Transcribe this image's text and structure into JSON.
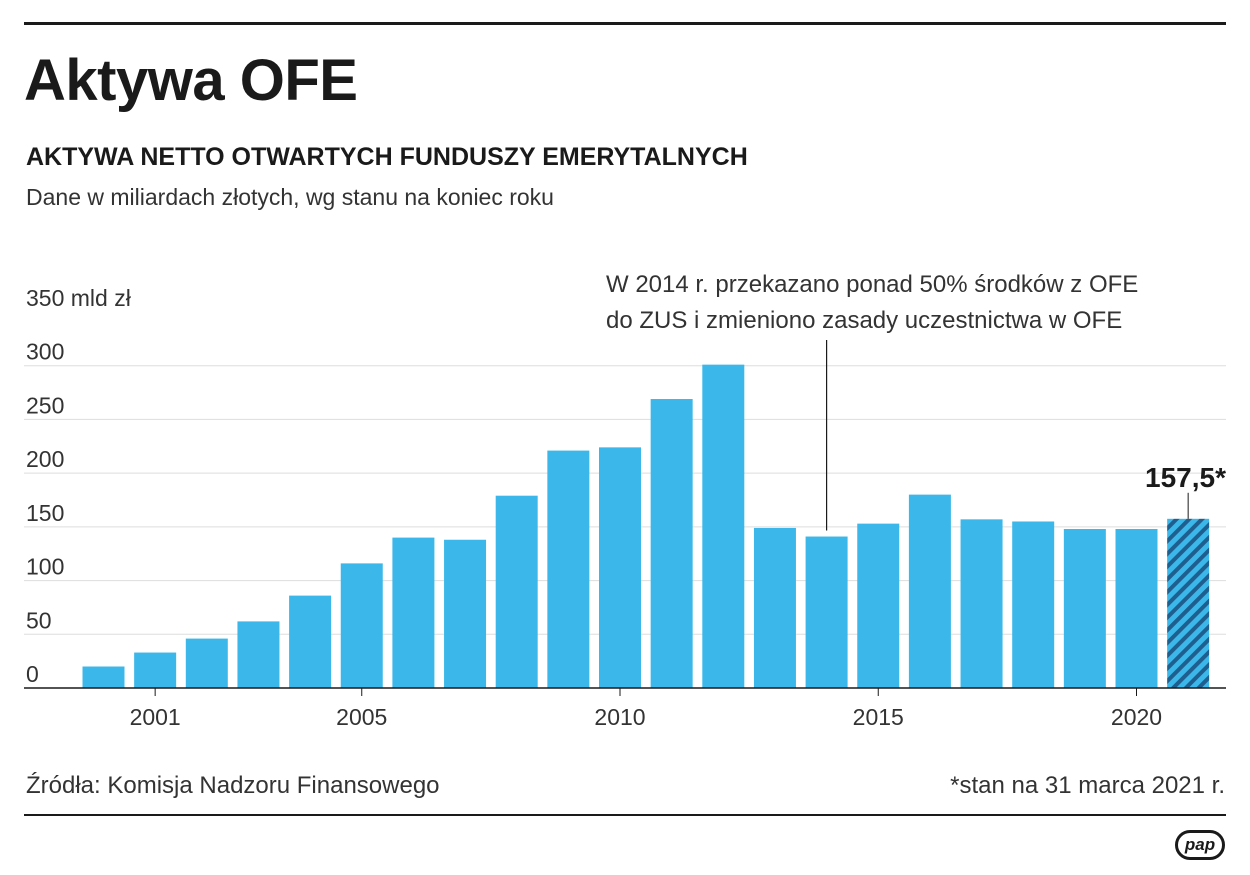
{
  "header": {
    "title": "Aktywa OFE",
    "subtitle": "AKTYWA NETTO OTWARTYCH FUNDUSZY EMERYTALNYCH",
    "note": "Dane w miliardach złotych, wg stanu na koniec roku"
  },
  "footer": {
    "source": "Źródła: Komisja Nadzoru Finansowego",
    "footnote": "*stan na 31 marca 2021 r.",
    "logo": "pap"
  },
  "colors": {
    "bar": "#3bb8e9",
    "highlight_bar": "#2f8fc5",
    "hatch": "#1f5f8f",
    "grid": "#dddddd",
    "axis": "#1a1a1a",
    "text": "#333333"
  },
  "chart_data": {
    "type": "bar",
    "title": "AKTYWA NETTO OTWARTYCH FUNDUSZY EMERYTALNYCH",
    "xlabel": "",
    "ylabel": "mld zł",
    "ylim": [
      0,
      350
    ],
    "yticks": [
      0,
      50,
      100,
      150,
      200,
      250,
      300,
      350
    ],
    "ytick_labels": [
      "0",
      "50",
      "100",
      "150",
      "200",
      "250",
      "300",
      "350 mld zł"
    ],
    "categories": [
      "2000",
      "2001",
      "2002",
      "2003",
      "2004",
      "2005",
      "2006",
      "2007",
      "2008",
      "2009",
      "2010",
      "2011",
      "2012",
      "2013",
      "2014",
      "2015",
      "2016",
      "2017",
      "2018",
      "2019",
      "2020",
      "2021"
    ],
    "values": [
      20,
      33,
      46,
      62,
      86,
      116,
      140,
      138,
      179,
      221,
      224,
      269,
      301,
      149,
      141,
      153,
      180,
      157,
      155,
      148,
      148,
      157.5
    ],
    "xtick_labels": [
      {
        "category": "2001",
        "label": "2001"
      },
      {
        "category": "2005",
        "label": "2005"
      },
      {
        "category": "2010",
        "label": "2010"
      },
      {
        "category": "2015",
        "label": "2015"
      },
      {
        "category": "2020",
        "label": "2020"
      }
    ],
    "highlight": {
      "category": "2021",
      "label": "157,5*",
      "pattern": "hatched"
    },
    "annotation": {
      "category": "2014",
      "lines": [
        "W 2014 r. przekazano ponad 50% środków z OFE",
        "do ZUS i zmieniono zasady uczestnictwa w OFE"
      ]
    },
    "grid": true,
    "legend": "none"
  }
}
